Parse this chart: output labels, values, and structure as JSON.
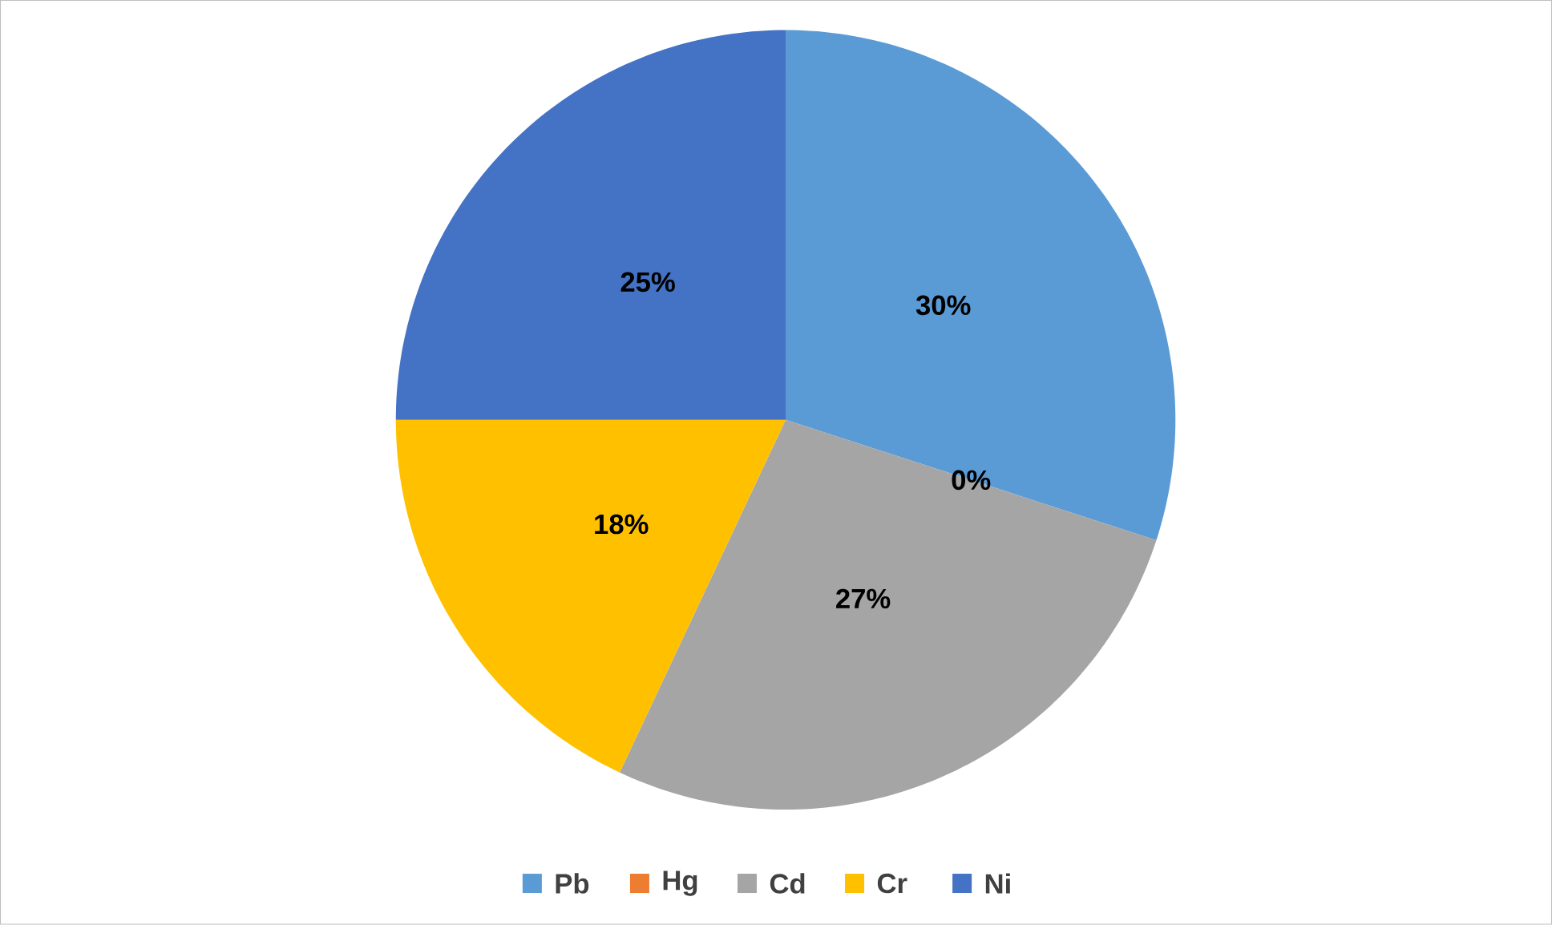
{
  "chart_data": {
    "type": "pie",
    "categories": [
      "Pb",
      "Hg",
      "Cd",
      "Cr",
      "Ni"
    ],
    "values": [
      30,
      0,
      27,
      18,
      25
    ],
    "colors": [
      "#5b9bd5",
      "#ed7d31",
      "#a5a5a5",
      "#ffc000",
      "#4472c4"
    ],
    "value_labels": [
      "30%",
      "0%",
      "27%",
      "18%",
      "25%"
    ],
    "legend": "bottom"
  }
}
